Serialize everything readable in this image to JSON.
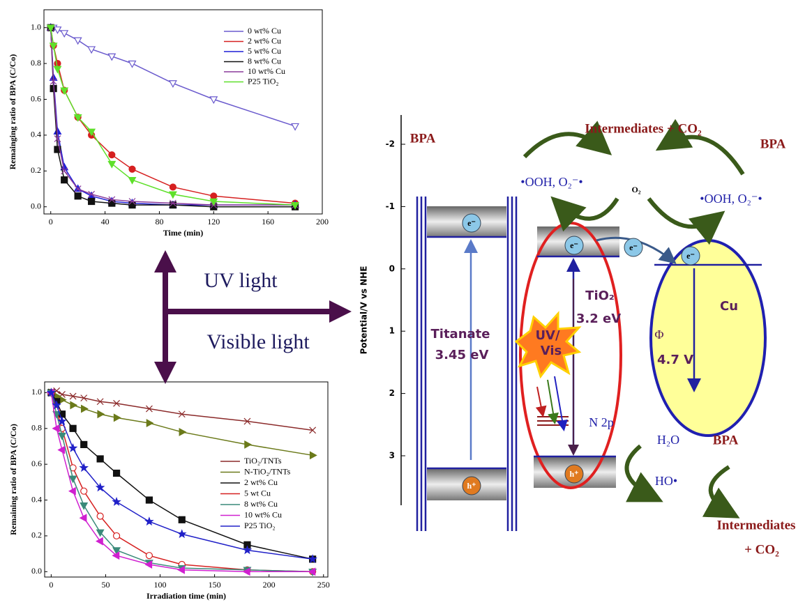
{
  "chart_data": [
    {
      "type": "line",
      "x_label": "Time (min)",
      "y_label": "Remainging ratio of BPA (C/Co)",
      "x": [
        0,
        2,
        5,
        10,
        20,
        30,
        45,
        60,
        90,
        120,
        180
      ],
      "xlim": [
        -5,
        200
      ],
      "xticks": [
        0,
        40,
        80,
        120,
        160,
        200
      ],
      "ylim": [
        -0.04,
        1.1
      ],
      "yticks": [
        {
          "value": 0,
          "label": "0.0"
        },
        0.2,
        0.4,
        0.6,
        0.8,
        {
          "value": 1,
          "label": "1.0"
        }
      ],
      "legend": "upper right",
      "series": [
        {
          "name": "0 wt% Cu",
          "color": "#6a5acd",
          "marker": "triangle-down-open",
          "values": [
            1.0,
            1.0,
            0.99,
            0.97,
            0.93,
            0.88,
            0.84,
            0.8,
            0.69,
            0.6,
            0.45
          ]
        },
        {
          "name": "2 wt% Cu",
          "color": "#d62020",
          "marker": "circle",
          "values": [
            1.0,
            0.9,
            0.8,
            0.65,
            0.5,
            0.4,
            0.29,
            0.21,
            0.11,
            0.06,
            0.02
          ]
        },
        {
          "name": "5 wt% Cu",
          "color": "#1f1fd6",
          "marker": "triangle",
          "values": [
            1.0,
            0.72,
            0.42,
            0.22,
            0.1,
            0.06,
            0.03,
            0.02,
            0.01,
            0.01,
            0.01
          ]
        },
        {
          "name": "8 wt% Cu",
          "color": "#111111",
          "marker": "square",
          "values": [
            1.0,
            0.66,
            0.32,
            0.15,
            0.06,
            0.03,
            0.02,
            0.01,
            0.01,
            0.0,
            0.0
          ]
        },
        {
          "name": "10 wt% Cu",
          "color": "#8a3a9a",
          "marker": "x",
          "values": [
            1.0,
            0.7,
            0.38,
            0.2,
            0.1,
            0.07,
            0.04,
            0.03,
            0.02,
            0.01,
            0.01
          ]
        },
        {
          "name": "P25 TiO₂",
          "color": "#5fe02a",
          "marker": "triangle-down",
          "values": [
            1.0,
            0.9,
            0.77,
            0.65,
            0.5,
            0.42,
            0.24,
            0.15,
            0.07,
            0.03,
            0.01
          ]
        }
      ]
    },
    {
      "type": "line",
      "x_label": "Irradiation time (min)",
      "y_label": "Remaining ratio of BPA (C/Co)",
      "x": [
        0,
        5,
        10,
        20,
        30,
        45,
        60,
        90,
        120,
        180,
        240
      ],
      "xlim": [
        -6,
        254
      ],
      "xticks": [
        0,
        50,
        100,
        150,
        200,
        250
      ],
      "ylim": [
        -0.03,
        1.06
      ],
      "yticks": [
        {
          "value": 0,
          "label": "0.0"
        },
        0.2,
        0.4,
        0.6,
        0.8,
        {
          "value": 1,
          "label": "1.0"
        }
      ],
      "legend": "right",
      "series": [
        {
          "name": "TiO₂/TNTs",
          "color": "#8b2a2a",
          "marker": "x",
          "values": [
            1.0,
            1.01,
            0.99,
            0.98,
            0.97,
            0.95,
            0.94,
            0.91,
            0.88,
            0.84,
            0.79
          ]
        },
        {
          "name": "N-TiO₂/TNTs",
          "color": "#6b7a1a",
          "marker": "triangle-right",
          "values": [
            1.0,
            0.98,
            0.96,
            0.93,
            0.91,
            0.88,
            0.86,
            0.83,
            0.78,
            0.71,
            0.65
          ]
        },
        {
          "name": "2 wt% Cu",
          "color": "#111111",
          "marker": "square",
          "values": [
            1.0,
            0.95,
            0.88,
            0.8,
            0.71,
            0.63,
            0.55,
            0.4,
            0.29,
            0.15,
            0.07
          ]
        },
        {
          "name": "5 wt Cu",
          "color": "#d62020",
          "marker": "circle-open",
          "values": [
            1.0,
            0.9,
            0.8,
            0.58,
            0.45,
            0.31,
            0.2,
            0.09,
            0.04,
            0.01,
            0.0
          ]
        },
        {
          "name": "8 wt% Cu",
          "color": "#3a8a7a",
          "marker": "triangle-down",
          "values": [
            1.0,
            0.88,
            0.76,
            0.52,
            0.37,
            0.22,
            0.12,
            0.05,
            0.02,
            0.01,
            0.0
          ]
        },
        {
          "name": "10 wt% Cu",
          "color": "#d020d0",
          "marker": "triangle-left",
          "values": [
            1.0,
            0.8,
            0.68,
            0.45,
            0.3,
            0.17,
            0.09,
            0.04,
            0.01,
            0.0,
            0.0
          ]
        },
        {
          "name": "P25 TiO₂",
          "color": "#2020c8",
          "marker": "star",
          "values": [
            1.0,
            0.93,
            0.84,
            0.69,
            0.58,
            0.47,
            0.39,
            0.28,
            0.21,
            0.12,
            0.07
          ]
        }
      ]
    }
  ],
  "arrows": {
    "up": "UV light",
    "down": "Visible light"
  },
  "diagram": {
    "y_label": "Potential/V vs NHE",
    "yticks": [
      -2,
      -1,
      0,
      1,
      2,
      3
    ],
    "bpa_left": "BPA",
    "intermediates_top": "Intermediates + CO₂",
    "bpa_right": "BPA",
    "radicals_left": "•OOH, O₂⁻•",
    "o2": "O₂",
    "radicals_right": "•OOH, O₂⁻•",
    "electron_titanate": "e⁻",
    "hole_titanate": "h⁺",
    "electron_tio2": "e⁻",
    "hole_tio2": "h⁺",
    "electron_transfer": "e⁻",
    "electron_cu": "e⁻",
    "titanate": "Titanate",
    "titanate_gap": "3.45 eV",
    "tio2": "TiO₂",
    "tio2_gap": "3.2 eV",
    "light_1": "UV/",
    "light_2": "Vis",
    "n2p": "N 2p",
    "cu": "Cu",
    "phi": "Φ",
    "phi_value": "4.7 V",
    "h2o": "H₂O",
    "bpa_bottom": "BPA",
    "ho": "HO•",
    "intermediates_bottom": "Intermediates",
    "co2_bottom": "+ CO₂"
  }
}
